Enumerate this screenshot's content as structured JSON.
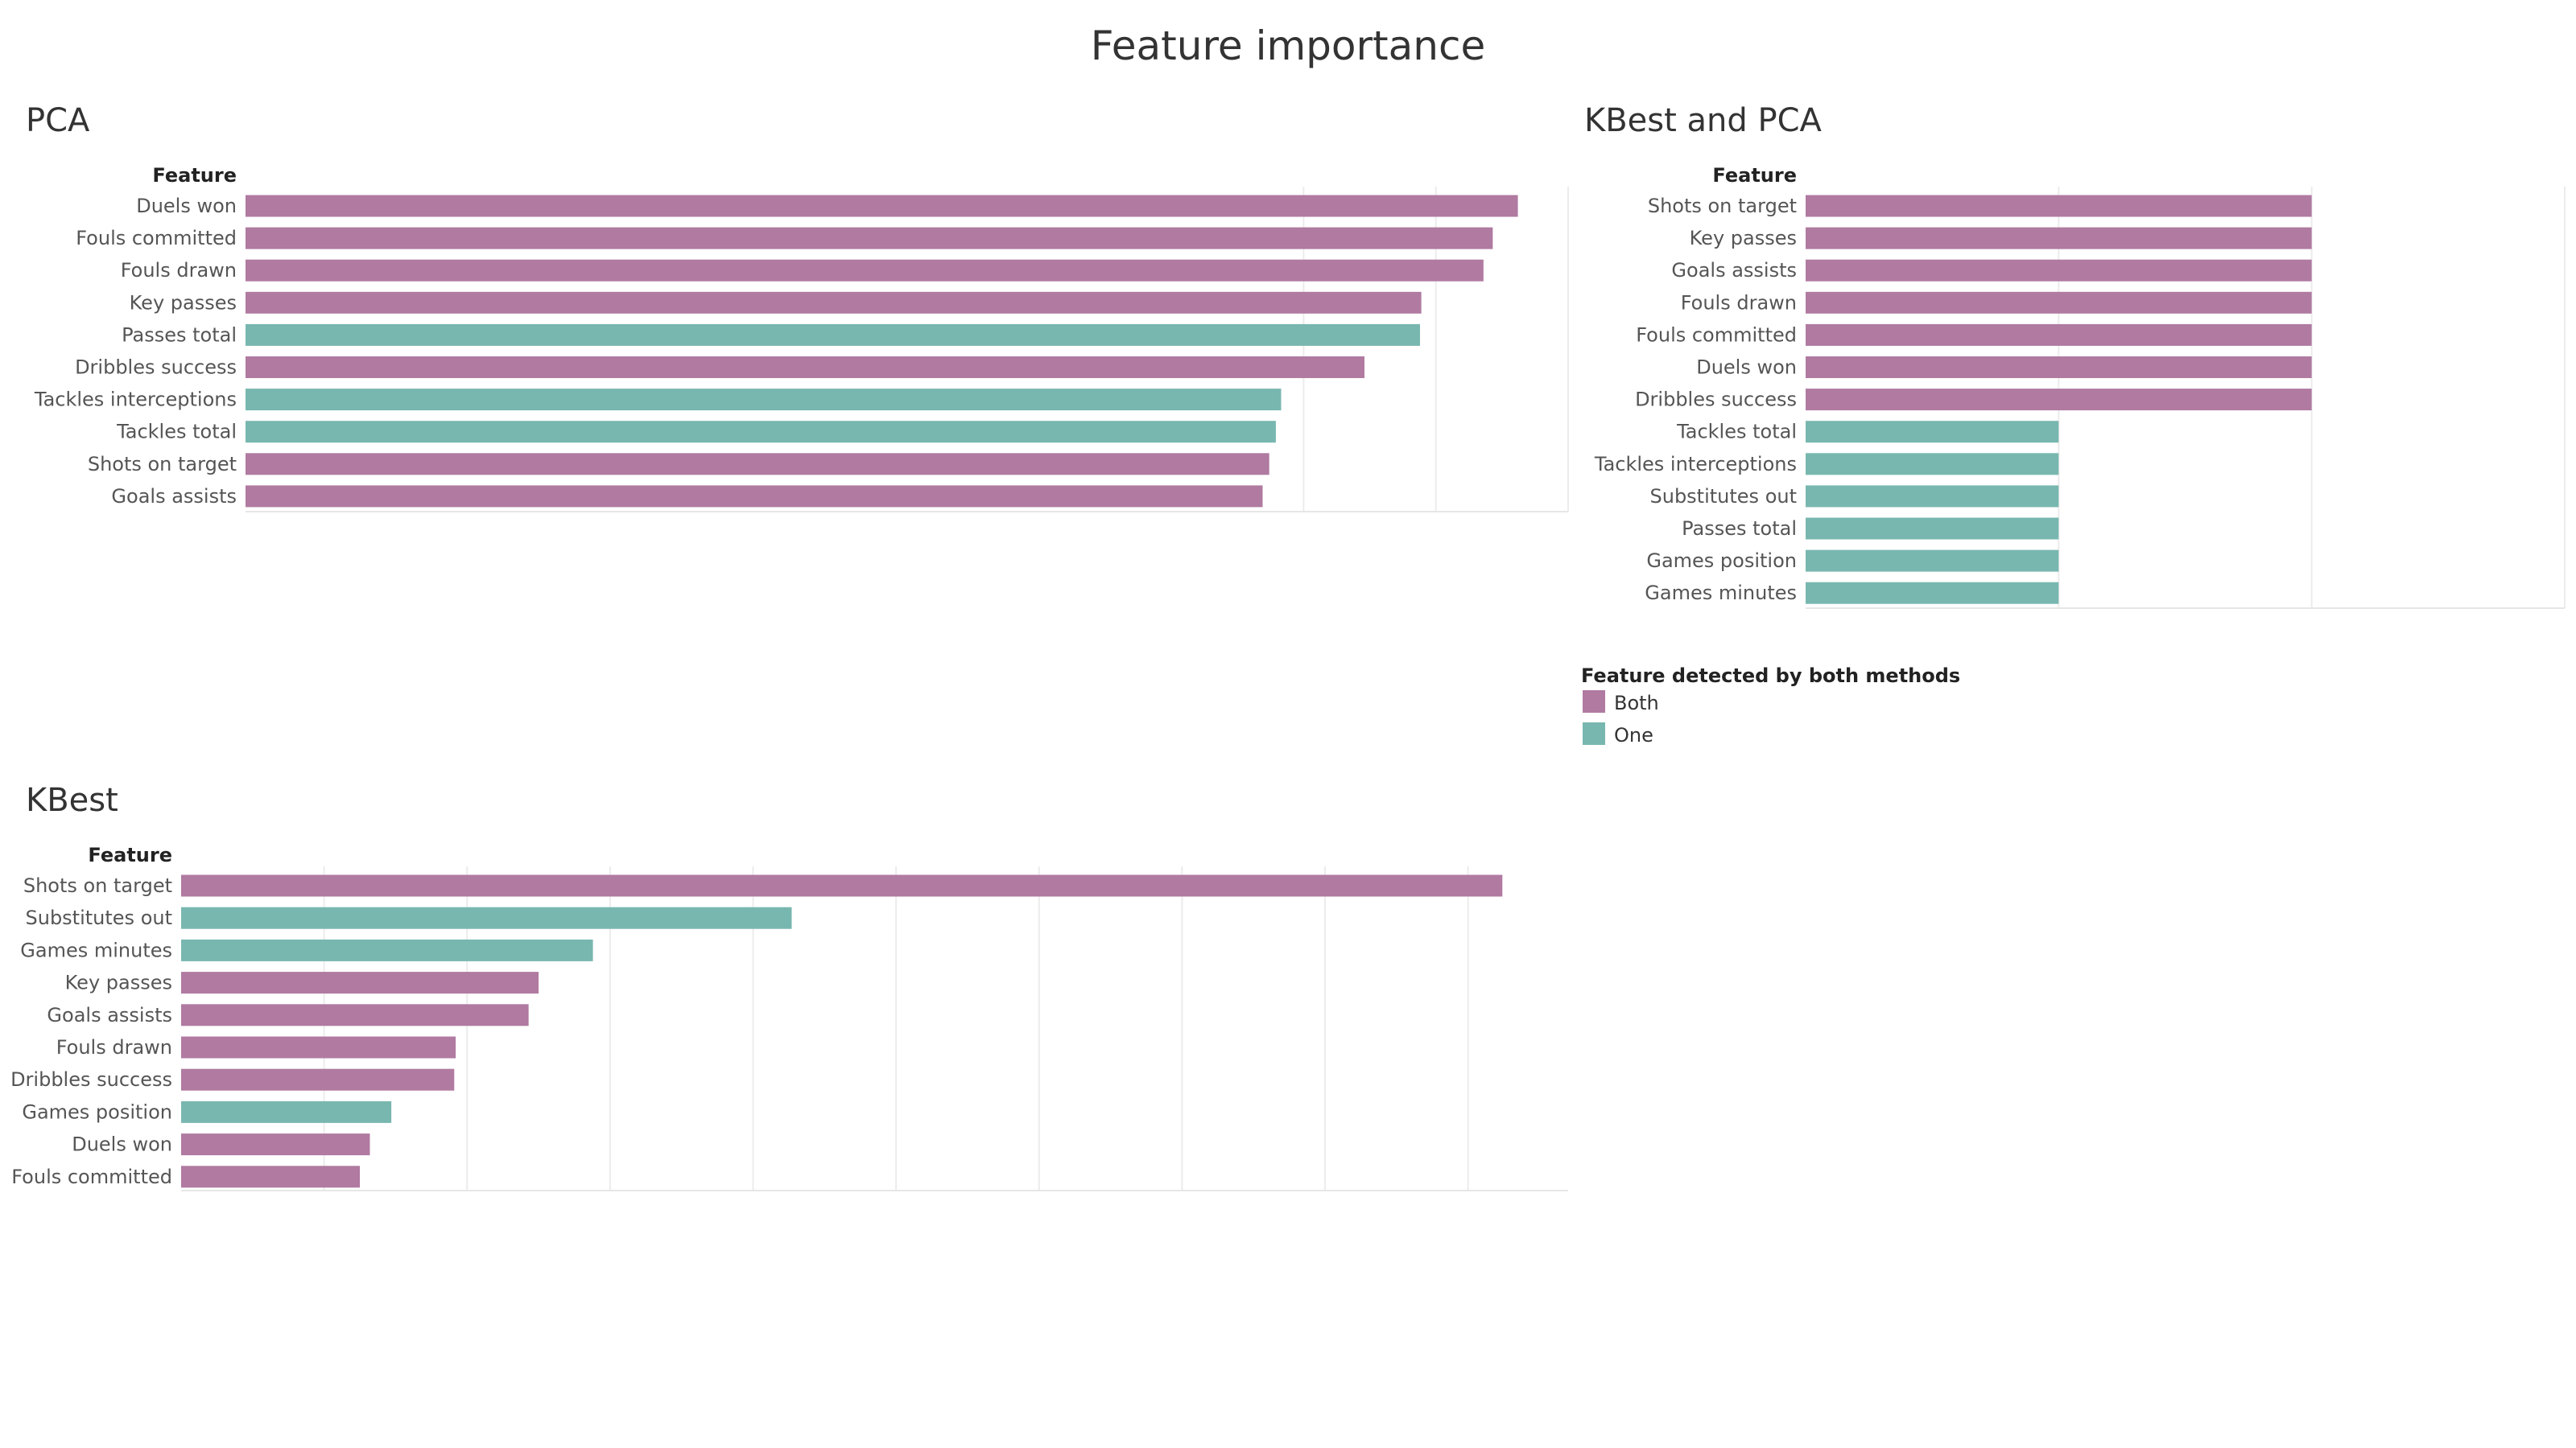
{
  "title": "Feature importance",
  "legend": {
    "title": "Feature detected by both methods",
    "items": [
      {
        "key": "Both",
        "label": "Both",
        "color": "#b07aa1"
      },
      {
        "key": "One",
        "label": "One",
        "color": "#78b7af"
      }
    ]
  },
  "chart_data": [
    {
      "type": "bar",
      "orientation": "horizontal",
      "title": "PCA",
      "ylabel": "Feature",
      "xlim": [
        0,
        1
      ],
      "grid": true,
      "categories": [
        "Duels won",
        "Fouls committed",
        "Fouls drawn",
        "Key passes",
        "Passes total",
        "Dribbles success",
        "Tackles interceptions",
        "Tackles total",
        "Shots on target",
        "Goals assists"
      ],
      "values": [
        0.962,
        0.943,
        0.936,
        0.889,
        0.888,
        0.846,
        0.783,
        0.779,
        0.774,
        0.769
      ],
      "groups": [
        "Both",
        "Both",
        "Both",
        "Both",
        "One",
        "Both",
        "One",
        "One",
        "Both",
        "Both"
      ]
    },
    {
      "type": "bar",
      "orientation": "horizontal",
      "title": "KBest and PCA",
      "ylabel": "Feature",
      "xlim": [
        0,
        3
      ],
      "grid": true,
      "categories": [
        "Shots on target",
        "Key passes",
        "Goals assists",
        "Fouls drawn",
        "Fouls committed",
        "Duels won",
        "Dribbles success",
        "Tackles total",
        "Tackles interceptions",
        "Substitutes out",
        "Passes total",
        "Games position",
        "Games minutes"
      ],
      "values": [
        2,
        2,
        2,
        2,
        2,
        2,
        2,
        1,
        1,
        1,
        1,
        1,
        1
      ],
      "groups": [
        "Both",
        "Both",
        "Both",
        "Both",
        "Both",
        "Both",
        "Both",
        "One",
        "One",
        "One",
        "One",
        "One",
        "One"
      ]
    },
    {
      "type": "bar",
      "orientation": "horizontal",
      "title": "KBest",
      "ylabel": "Feature",
      "xlim": [
        0,
        970
      ],
      "grid": true,
      "categories": [
        "Shots on target",
        "Substitutes out",
        "Games minutes",
        "Key passes",
        "Goals assists",
        "Fouls drawn",
        "Dribbles success",
        "Games position",
        "Duels won",
        "Fouls committed"
      ],
      "values": [
        924,
        427,
        288,
        250,
        243,
        192,
        191,
        147,
        132,
        125
      ],
      "groups": [
        "Both",
        "One",
        "One",
        "Both",
        "Both",
        "Both",
        "Both",
        "One",
        "Both",
        "Both"
      ]
    }
  ]
}
